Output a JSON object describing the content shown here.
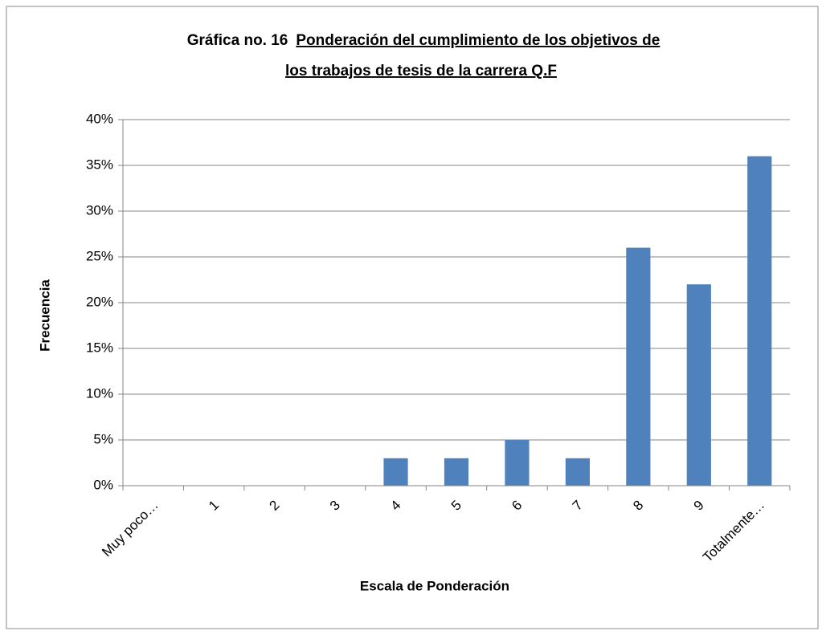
{
  "chart_data": {
    "type": "bar",
    "title": [
      "Gráfica no. 16",
      "Ponderación del cumplimiento de los objetivos de",
      "los trabajos de tesis de la carrera Q.F"
    ],
    "x_label": "Escala de Ponderación",
    "y_label": "Frecuencia",
    "categories": [
      "Muy poco…",
      "1",
      "2",
      "3",
      "4",
      "5",
      "6",
      "7",
      "8",
      "9",
      "Totalmente…"
    ],
    "values": [
      0,
      0,
      0,
      0,
      3,
      3,
      5,
      3,
      26,
      22,
      36
    ],
    "color": "#4f81bd",
    "ylim": [
      0,
      40
    ],
    "yticks": [
      {
        "value": 0,
        "label": "0%"
      },
      {
        "value": 5,
        "label": "5%"
      },
      {
        "value": 10,
        "label": "10%"
      },
      {
        "value": 15,
        "label": "15%"
      },
      {
        "value": 20,
        "label": "20%"
      },
      {
        "value": 25,
        "label": "25%"
      },
      {
        "value": 30,
        "label": "30%"
      },
      {
        "value": 35,
        "label": "35%"
      },
      {
        "value": 40,
        "label": "40%"
      }
    ],
    "grid": true
  }
}
